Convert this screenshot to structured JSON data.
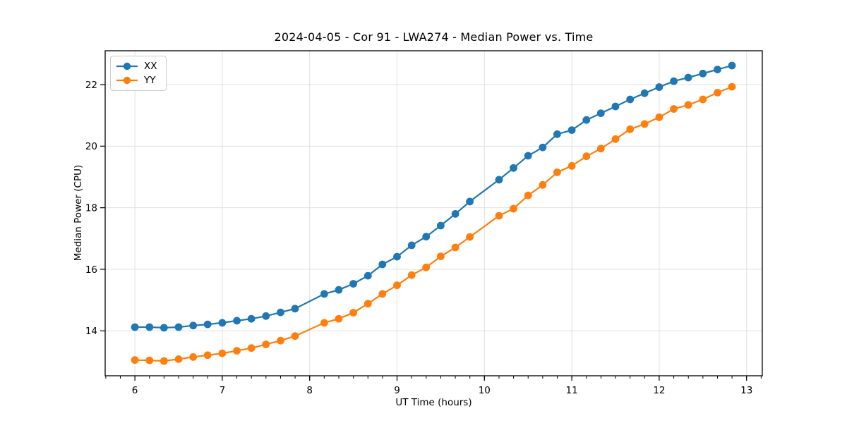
{
  "chart_data": {
    "type": "line",
    "title": "2024-04-05 - Cor 91 - LWA274 - Median Power vs. Time",
    "xlabel": "UT Time (hours)",
    "ylabel": "Median Power (CPU)",
    "xlim": [
      5.66,
      13.18
    ],
    "ylim": [
      12.54,
      23.1
    ],
    "x_major_ticks": [
      6,
      7,
      8,
      9,
      10,
      11,
      12,
      13
    ],
    "x_minor_interval": 0.16667,
    "y_major_ticks": [
      14,
      16,
      18,
      20,
      22
    ],
    "grid": true,
    "grid_color": "#e0e0e0",
    "legend_position": "upper-left",
    "x": [
      6.0,
      6.167,
      6.333,
      6.5,
      6.667,
      6.833,
      7.0,
      7.167,
      7.333,
      7.5,
      7.667,
      7.833,
      8.167,
      8.333,
      8.5,
      8.667,
      8.833,
      9.0,
      9.167,
      9.333,
      9.5,
      9.667,
      9.833,
      10.167,
      10.333,
      10.5,
      10.667,
      10.833,
      11.0,
      11.167,
      11.333,
      11.5,
      11.667,
      11.833,
      12.0,
      12.167,
      12.333,
      12.5,
      12.667,
      12.833
    ],
    "series": [
      {
        "name": "XX",
        "color": "#1f77b4",
        "values": [
          14.12,
          14.12,
          14.1,
          14.12,
          14.17,
          14.21,
          14.26,
          14.33,
          14.39,
          14.48,
          14.6,
          14.72,
          15.2,
          15.33,
          15.53,
          15.79,
          16.16,
          16.41,
          16.78,
          17.06,
          17.42,
          17.8,
          18.2,
          18.91,
          19.29,
          19.69,
          19.96,
          20.39,
          20.52,
          20.85,
          21.07,
          21.29,
          21.52,
          21.72,
          21.92,
          22.11,
          22.23,
          22.36,
          22.49,
          22.62
        ]
      },
      {
        "name": "YY",
        "color": "#ff7f0e",
        "values": [
          13.05,
          13.04,
          13.02,
          13.08,
          13.15,
          13.21,
          13.27,
          13.35,
          13.44,
          13.56,
          13.68,
          13.83,
          14.26,
          14.39,
          14.59,
          14.88,
          15.2,
          15.48,
          15.81,
          16.06,
          16.42,
          16.71,
          17.05,
          17.74,
          17.97,
          18.4,
          18.74,
          19.15,
          19.36,
          19.67,
          19.92,
          20.23,
          20.55,
          20.72,
          20.94,
          21.21,
          21.34,
          21.52,
          21.74,
          21.93
        ]
      }
    ]
  }
}
